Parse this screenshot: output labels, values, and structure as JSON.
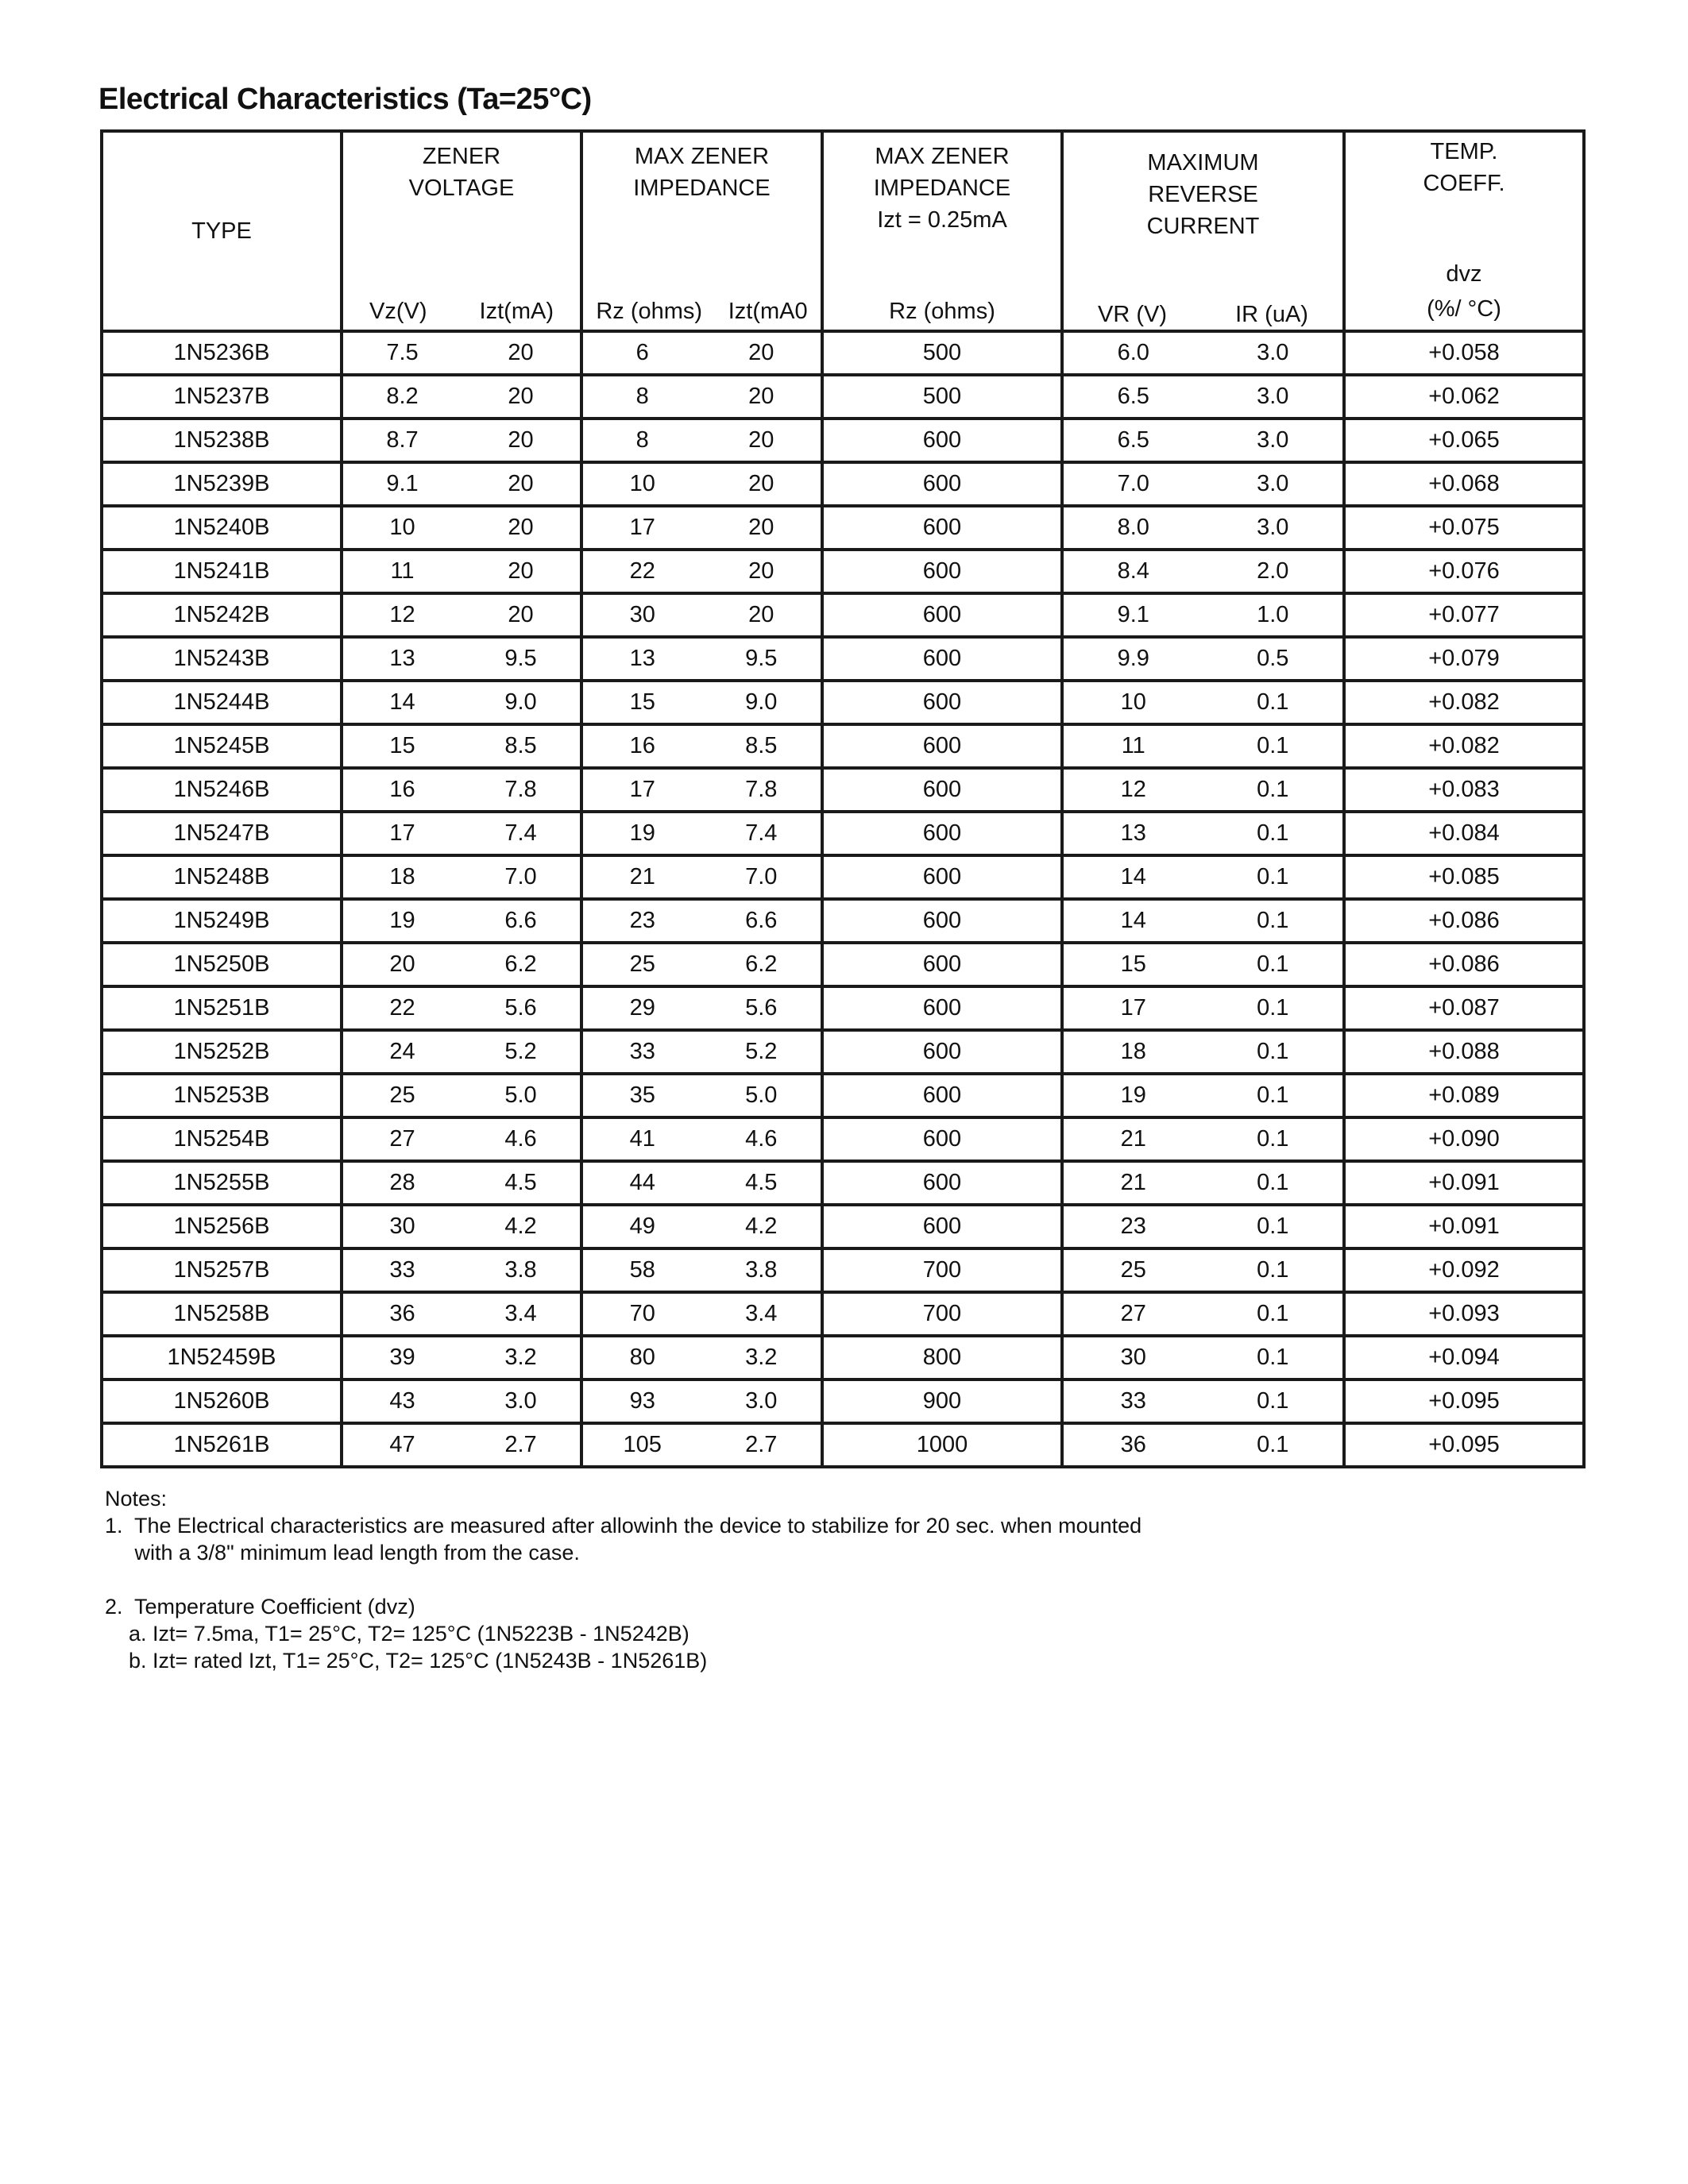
{
  "title": "Electrical Characteristics (Ta=25°C)",
  "headers": {
    "type": "TYPE",
    "zener_voltage": [
      "ZENER",
      "VOLTAGE"
    ],
    "zener_voltage_sub": [
      "Vz(V)",
      "Izt(mA)"
    ],
    "max_zener_impedance": [
      "MAX ZENER",
      "IMPEDANCE"
    ],
    "max_zener_impedance_sub": [
      "Rz (ohms)",
      "Izt(mA0"
    ],
    "max_zener_impedance_025": [
      "MAX ZENER",
      "IMPEDANCE",
      "Izt = 0.25mA"
    ],
    "max_zener_impedance_025_sub": "Rz (ohms)",
    "max_reverse_current": [
      "MAXIMUM",
      "REVERSE",
      "CURRENT"
    ],
    "max_reverse_current_sub": [
      "VR (V)",
      "IR (uA)"
    ],
    "temp_coeff": [
      "TEMP.",
      "COEFF."
    ],
    "temp_coeff_sub": [
      "dvz",
      "(%/ °C)"
    ]
  },
  "rows": [
    [
      "1N5236B",
      "7.5",
      "20",
      "6",
      "20",
      "500",
      "6.0",
      "3.0",
      "+0.058"
    ],
    [
      "1N5237B",
      "8.2",
      "20",
      "8",
      "20",
      "500",
      "6.5",
      "3.0",
      "+0.062"
    ],
    [
      "1N5238B",
      "8.7",
      "20",
      "8",
      "20",
      "600",
      "6.5",
      "3.0",
      "+0.065"
    ],
    [
      "1N5239B",
      "9.1",
      "20",
      "10",
      "20",
      "600",
      "7.0",
      "3.0",
      "+0.068"
    ],
    [
      "1N5240B",
      "10",
      "20",
      "17",
      "20",
      "600",
      "8.0",
      "3.0",
      "+0.075"
    ],
    [
      "1N5241B",
      "11",
      "20",
      "22",
      "20",
      "600",
      "8.4",
      "2.0",
      "+0.076"
    ],
    [
      "1N5242B",
      "12",
      "20",
      "30",
      "20",
      "600",
      "9.1",
      "1.0",
      "+0.077"
    ],
    [
      "1N5243B",
      "13",
      "9.5",
      "13",
      "9.5",
      "600",
      "9.9",
      "0.5",
      "+0.079"
    ],
    [
      "1N5244B",
      "14",
      "9.0",
      "15",
      "9.0",
      "600",
      "10",
      "0.1",
      "+0.082"
    ],
    [
      "1N5245B",
      "15",
      "8.5",
      "16",
      "8.5",
      "600",
      "11",
      "0.1",
      "+0.082"
    ],
    [
      "1N5246B",
      "16",
      "7.8",
      "17",
      "7.8",
      "600",
      "12",
      "0.1",
      "+0.083"
    ],
    [
      "1N5247B",
      "17",
      "7.4",
      "19",
      "7.4",
      "600",
      "13",
      "0.1",
      "+0.084"
    ],
    [
      "1N5248B",
      "18",
      "7.0",
      "21",
      "7.0",
      "600",
      "14",
      "0.1",
      "+0.085"
    ],
    [
      "1N5249B",
      "19",
      "6.6",
      "23",
      "6.6",
      "600",
      "14",
      "0.1",
      "+0.086"
    ],
    [
      "1N5250B",
      "20",
      "6.2",
      "25",
      "6.2",
      "600",
      "15",
      "0.1",
      "+0.086"
    ],
    [
      "1N5251B",
      "22",
      "5.6",
      "29",
      "5.6",
      "600",
      "17",
      "0.1",
      "+0.087"
    ],
    [
      "1N5252B",
      "24",
      "5.2",
      "33",
      "5.2",
      "600",
      "18",
      "0.1",
      "+0.088"
    ],
    [
      "1N5253B",
      "25",
      "5.0",
      "35",
      "5.0",
      "600",
      "19",
      "0.1",
      "+0.089"
    ],
    [
      "1N5254B",
      "27",
      "4.6",
      "41",
      "4.6",
      "600",
      "21",
      "0.1",
      "+0.090"
    ],
    [
      "1N5255B",
      "28",
      "4.5",
      "44",
      "4.5",
      "600",
      "21",
      "0.1",
      "+0.091"
    ],
    [
      "1N5256B",
      "30",
      "4.2",
      "49",
      "4.2",
      "600",
      "23",
      "0.1",
      "+0.091"
    ],
    [
      "1N5257B",
      "33",
      "3.8",
      "58",
      "3.8",
      "700",
      "25",
      "0.1",
      "+0.092"
    ],
    [
      "1N5258B",
      "36",
      "3.4",
      "70",
      "3.4",
      "700",
      "27",
      "0.1",
      "+0.093"
    ],
    [
      "1N52459B",
      "39",
      "3.2",
      "80",
      "3.2",
      "800",
      "30",
      "0.1",
      "+0.094"
    ],
    [
      "1N5260B",
      "43",
      "3.0",
      "93",
      "3.0",
      "900",
      "33",
      "0.1",
      "+0.095"
    ],
    [
      "1N5261B",
      "47",
      "2.7",
      "105",
      "2.7",
      "1000",
      "36",
      "0.1",
      "+0.095"
    ]
  ],
  "notes": {
    "heading": "Notes:",
    "lines": [
      "1.  The Electrical characteristics are measured after allowinh the device to stabilize for 20 sec. when mounted",
      "     with a 3/8\" minimum lead length from the case.",
      "",
      "2.  Temperature Coefficient (dvz)",
      "    a. Izt= 7.5ma, T1= 25°C, T2= 125°C (1N5223B - 1N5242B)",
      "    b. Izt= rated Izt, T1= 25°C, T2= 125°C (1N5243B - 1N5261B)"
    ]
  }
}
